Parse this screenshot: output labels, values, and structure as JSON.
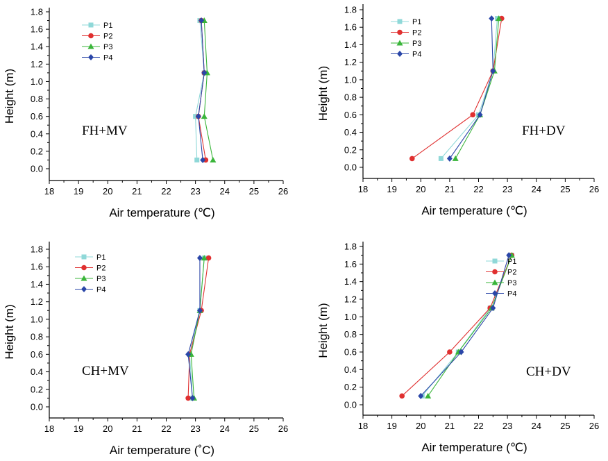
{
  "chart_data": [
    {
      "type": "line",
      "annotation": "FH+MV",
      "xlabel": "Air temperature (℃)",
      "ylabel": "Height (m)",
      "xlim": [
        18,
        26
      ],
      "ylim": [
        0,
        1.8
      ],
      "xticks": [
        "18",
        "19",
        "20",
        "21",
        "22",
        "23",
        "24",
        "25",
        "26"
      ],
      "yticks": [
        "0.0",
        "0.2",
        "0.4",
        "0.6",
        "0.8",
        "1.0",
        "1.2",
        "1.4",
        "1.6",
        "1.8"
      ],
      "grid": false,
      "legend": "top-left",
      "y": [
        0.1,
        0.6,
        1.1,
        1.7
      ],
      "series": [
        {
          "name": "P1",
          "color": "#8fd8d8",
          "marker": "square",
          "x": [
            23.05,
            23.0,
            23.3,
            23.15
          ]
        },
        {
          "name": "P2",
          "color": "#e03030",
          "marker": "circle",
          "x": [
            23.35,
            23.1,
            23.3,
            23.2
          ]
        },
        {
          "name": "P3",
          "color": "#3ab53a",
          "marker": "triangle",
          "x": [
            23.6,
            23.3,
            23.4,
            23.3
          ]
        },
        {
          "name": "P4",
          "color": "#2a46a8",
          "marker": "diamond",
          "x": [
            23.25,
            23.1,
            23.3,
            23.2
          ]
        }
      ]
    },
    {
      "type": "line",
      "annotation": "FH+DV",
      "xlabel": "Air temperature (℃)",
      "ylabel": "Height (m)",
      "xlim": [
        18,
        26
      ],
      "ylim": [
        0,
        1.8
      ],
      "xticks": [
        "18",
        "19",
        "20",
        "21",
        "22",
        "23",
        "24",
        "25",
        "26"
      ],
      "yticks": [
        "0.0",
        "0.2",
        "0.4",
        "0.6",
        "0.8",
        "1.0",
        "1.2",
        "1.4",
        "1.6",
        "1.8"
      ],
      "grid": false,
      "legend": "top-left",
      "y": [
        0.1,
        0.6,
        1.1,
        1.7
      ],
      "series": [
        {
          "name": "P1",
          "color": "#8fd8d8",
          "marker": "square",
          "x": [
            20.7,
            22.0,
            22.5,
            22.65
          ]
        },
        {
          "name": "P2",
          "color": "#e03030",
          "marker": "circle",
          "x": [
            19.7,
            21.8,
            22.5,
            22.8
          ]
        },
        {
          "name": "P3",
          "color": "#3ab53a",
          "marker": "triangle",
          "x": [
            21.2,
            22.05,
            22.55,
            22.7
          ]
        },
        {
          "name": "P4",
          "color": "#2a46a8",
          "marker": "diamond",
          "x": [
            21.0,
            22.05,
            22.5,
            22.45
          ]
        }
      ]
    },
    {
      "type": "line",
      "annotation": "CH+MV",
      "xlabel": "Air temperature (˚C)",
      "ylabel": "Height (m)",
      "xlim": [
        18,
        26
      ],
      "ylim": [
        0,
        1.8
      ],
      "xticks": [
        "18",
        "19",
        "20",
        "21",
        "22",
        "23",
        "24",
        "25",
        "26"
      ],
      "yticks": [
        "0.0",
        "0.2",
        "0.4",
        "0.6",
        "0.8",
        "1.0",
        "1.2",
        "1.4",
        "1.6",
        "1.8"
      ],
      "grid": false,
      "legend": "top-left",
      "y": [
        0.1,
        0.6,
        1.1,
        1.7
      ],
      "series": [
        {
          "name": "P1",
          "color": "#8fd8d8",
          "marker": "square",
          "x": [
            22.9,
            22.8,
            23.15,
            23.3
          ]
        },
        {
          "name": "P2",
          "color": "#e03030",
          "marker": "circle",
          "x": [
            22.75,
            22.8,
            23.2,
            23.45
          ]
        },
        {
          "name": "P3",
          "color": "#3ab53a",
          "marker": "triangle",
          "x": [
            22.95,
            22.85,
            23.15,
            23.3
          ]
        },
        {
          "name": "P4",
          "color": "#2a46a8",
          "marker": "diamond",
          "x": [
            22.9,
            22.75,
            23.15,
            23.15
          ]
        }
      ]
    },
    {
      "type": "line",
      "annotation": "CH+DV",
      "xlabel": "Air temperature (℃)",
      "ylabel": "Height (m)",
      "xlim": [
        18,
        26
      ],
      "ylim": [
        0,
        1.8
      ],
      "xticks": [
        "18",
        "19",
        "20",
        "21",
        "22",
        "23",
        "24",
        "25",
        "26"
      ],
      "yticks": [
        "0.0",
        "0.2",
        "0.4",
        "0.6",
        "0.8",
        "1.0",
        "1.2",
        "1.4",
        "1.6",
        "1.8"
      ],
      "grid": false,
      "legend": "top-right",
      "y": [
        0.1,
        0.6,
        1.1,
        1.7
      ],
      "series": [
        {
          "name": "P1",
          "color": "#8fd8d8",
          "marker": "square",
          "x": [
            20.05,
            21.3,
            22.4,
            23.15
          ]
        },
        {
          "name": "P2",
          "color": "#e03030",
          "marker": "circle",
          "x": [
            19.35,
            21.0,
            22.4,
            23.15
          ]
        },
        {
          "name": "P3",
          "color": "#3ab53a",
          "marker": "triangle",
          "x": [
            20.25,
            21.3,
            22.45,
            23.15
          ]
        },
        {
          "name": "P4",
          "color": "#2a46a8",
          "marker": "diamond",
          "x": [
            20.0,
            21.4,
            22.5,
            23.05
          ]
        }
      ]
    }
  ]
}
